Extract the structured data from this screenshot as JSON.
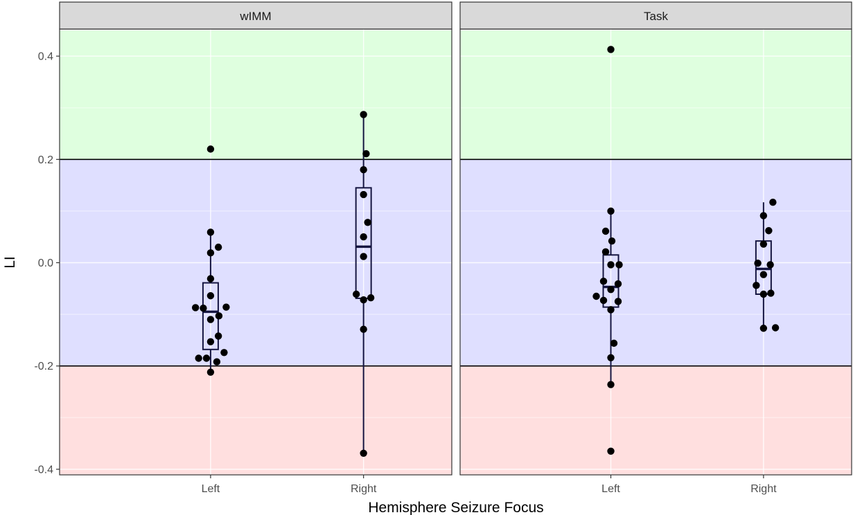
{
  "chart_data": {
    "type": "boxplot-with-points",
    "xlabel": "Hemisphere Seizure Focus",
    "ylabel": "LI",
    "ylim": [
      -0.41,
      0.45
    ],
    "yticks": [
      -0.4,
      -0.2,
      0.0,
      0.2,
      0.4
    ],
    "ytick_labels": [
      "-0.4",
      "-0.2",
      "0.0",
      "0.2",
      "0.4"
    ],
    "categories": [
      "Left",
      "Right"
    ],
    "bands": [
      {
        "from": 0.2,
        "to": 0.45,
        "color": "#dfffdf"
      },
      {
        "from": -0.2,
        "to": 0.2,
        "color": "#dfdfff"
      },
      {
        "from": -0.41,
        "to": -0.2,
        "color": "#ffdfdf"
      }
    ],
    "reference_lines": [
      0.2,
      -0.2
    ],
    "grid": true,
    "colors": {
      "points": "#000000",
      "box": "#151540",
      "strip": "#d9d9d9",
      "panel_border": "#333333",
      "grid": "#ebebeb"
    },
    "panels": [
      {
        "strip": "wIMM",
        "groups": [
          {
            "category": "Left",
            "box": {
              "q1": -0.168,
              "median": -0.095,
              "q3": -0.039,
              "whisker_low": -0.212,
              "whisker_high": 0.059
            },
            "points": [
              {
                "dx": 0.0,
                "y": 0.22
              },
              {
                "dx": 0.0,
                "y": 0.059
              },
              {
                "dx": 0.075,
                "y": 0.03
              },
              {
                "dx": 0.0,
                "y": 0.019
              },
              {
                "dx": 0.0,
                "y": -0.031
              },
              {
                "dx": 0.0,
                "y": -0.064
              },
              {
                "dx": -0.145,
                "y": -0.087
              },
              {
                "dx": -0.07,
                "y": -0.088
              },
              {
                "dx": 0.15,
                "y": -0.086
              },
              {
                "dx": 0.08,
                "y": -0.103
              },
              {
                "dx": 0.0,
                "y": -0.11
              },
              {
                "dx": 0.075,
                "y": -0.142
              },
              {
                "dx": 0.0,
                "y": -0.153
              },
              {
                "dx": 0.13,
                "y": -0.174
              },
              {
                "dx": -0.115,
                "y": -0.185
              },
              {
                "dx": -0.04,
                "y": -0.185
              },
              {
                "dx": 0.06,
                "y": -0.192
              },
              {
                "dx": 0.0,
                "y": -0.212
              }
            ]
          },
          {
            "category": "Right",
            "box": {
              "q1": -0.069,
              "median": 0.031,
              "q3": 0.145,
              "whisker_low": -0.369,
              "whisker_high": 0.287
            },
            "points": [
              {
                "dx": 0.0,
                "y": 0.287
              },
              {
                "dx": 0.025,
                "y": 0.211
              },
              {
                "dx": 0.0,
                "y": 0.18
              },
              {
                "dx": 0.0,
                "y": 0.132
              },
              {
                "dx": 0.04,
                "y": 0.078
              },
              {
                "dx": 0.0,
                "y": 0.05
              },
              {
                "dx": 0.0,
                "y": 0.012
              },
              {
                "dx": -0.07,
                "y": -0.061
              },
              {
                "dx": 0.07,
                "y": -0.068
              },
              {
                "dx": 0.0,
                "y": -0.072
              },
              {
                "dx": 0.0,
                "y": -0.129
              },
              {
                "dx": 0.0,
                "y": -0.369
              }
            ]
          }
        ]
      },
      {
        "strip": "Task",
        "groups": [
          {
            "category": "Left",
            "box": {
              "q1": -0.086,
              "median": -0.047,
              "q3": 0.015,
              "whisker_low": -0.236,
              "whisker_high": 0.1
            },
            "points": [
              {
                "dx": 0.0,
                "y": 0.413
              },
              {
                "dx": 0.0,
                "y": 0.1
              },
              {
                "dx": -0.05,
                "y": 0.061
              },
              {
                "dx": 0.01,
                "y": 0.042
              },
              {
                "dx": -0.05,
                "y": 0.021
              },
              {
                "dx": 0.0,
                "y": -0.004
              },
              {
                "dx": 0.08,
                "y": -0.004
              },
              {
                "dx": -0.07,
                "y": -0.036
              },
              {
                "dx": 0.07,
                "y": -0.041
              },
              {
                "dx": 0.0,
                "y": -0.052
              },
              {
                "dx": -0.14,
                "y": -0.065
              },
              {
                "dx": -0.07,
                "y": -0.073
              },
              {
                "dx": 0.07,
                "y": -0.075
              },
              {
                "dx": 0.0,
                "y": -0.091
              },
              {
                "dx": 0.03,
                "y": -0.156
              },
              {
                "dx": 0.0,
                "y": -0.184
              },
              {
                "dx": 0.0,
                "y": -0.236
              },
              {
                "dx": 0.0,
                "y": -0.365
              }
            ]
          },
          {
            "category": "Right",
            "box": {
              "q1": -0.061,
              "median": -0.012,
              "q3": 0.042,
              "whisker_low": -0.127,
              "whisker_high": 0.117
            },
            "points": [
              {
                "dx": 0.09,
                "y": 0.117
              },
              {
                "dx": 0.0,
                "y": 0.091
              },
              {
                "dx": 0.05,
                "y": 0.062
              },
              {
                "dx": 0.0,
                "y": 0.036
              },
              {
                "dx": -0.055,
                "y": -0.001
              },
              {
                "dx": 0.065,
                "y": -0.004
              },
              {
                "dx": 0.0,
                "y": -0.023
              },
              {
                "dx": -0.07,
                "y": -0.044
              },
              {
                "dx": 0.0,
                "y": -0.061
              },
              {
                "dx": 0.07,
                "y": -0.059
              },
              {
                "dx": 0.0,
                "y": -0.127
              },
              {
                "dx": 0.115,
                "y": -0.126
              }
            ]
          }
        ]
      }
    ]
  }
}
